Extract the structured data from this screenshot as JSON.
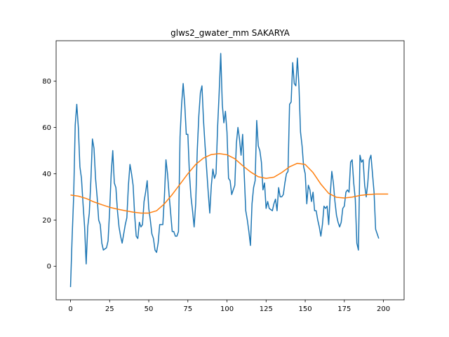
{
  "chart_data": {
    "type": "line",
    "title": "glws2_gwater_mm SAKARYA",
    "xlabel": "",
    "ylabel": "",
    "xlim": [
      -9.2,
      213.2
    ],
    "ylim": [
      -14.5,
      97.5
    ],
    "xticks": [
      0,
      25,
      50,
      75,
      100,
      125,
      150,
      175,
      200
    ],
    "yticks": [
      0,
      20,
      40,
      60,
      80
    ],
    "grid": false,
    "legend": "none",
    "series": [
      {
        "color": "#1f77b4",
        "points": [
          [
            0,
            -9
          ],
          [
            1,
            12
          ],
          [
            2,
            30
          ],
          [
            3,
            61
          ],
          [
            4,
            70
          ],
          [
            5,
            60
          ],
          [
            6,
            43
          ],
          [
            7,
            38
          ],
          [
            8,
            27
          ],
          [
            9,
            17
          ],
          [
            10,
            1
          ],
          [
            11,
            17
          ],
          [
            12,
            23
          ],
          [
            13,
            37
          ],
          [
            14,
            55
          ],
          [
            15,
            51
          ],
          [
            16,
            38
          ],
          [
            17,
            30
          ],
          [
            18,
            20
          ],
          [
            19,
            18
          ],
          [
            20,
            10
          ],
          [
            21,
            7
          ],
          [
            22,
            7.5
          ],
          [
            23,
            8
          ],
          [
            24,
            11
          ],
          [
            25,
            24
          ],
          [
            26,
            40
          ],
          [
            27,
            50
          ],
          [
            28,
            36
          ],
          [
            29,
            34
          ],
          [
            30,
            24
          ],
          [
            31,
            17
          ],
          [
            32,
            13
          ],
          [
            33,
            10
          ],
          [
            34,
            14
          ],
          [
            35,
            18
          ],
          [
            36,
            21
          ],
          [
            37,
            35
          ],
          [
            38,
            44
          ],
          [
            39,
            40
          ],
          [
            40,
            35
          ],
          [
            41,
            22
          ],
          [
            42,
            13
          ],
          [
            43,
            12
          ],
          [
            44,
            19
          ],
          [
            45,
            17
          ],
          [
            46,
            18
          ],
          [
            47,
            28
          ],
          [
            48,
            32
          ],
          [
            49,
            37
          ],
          [
            50,
            25
          ],
          [
            51,
            20
          ],
          [
            52,
            14
          ],
          [
            53,
            12
          ],
          [
            54,
            7
          ],
          [
            55,
            6
          ],
          [
            56,
            10
          ],
          [
            57,
            18
          ],
          [
            58,
            18
          ],
          [
            59,
            18
          ],
          [
            60,
            30
          ],
          [
            61,
            46
          ],
          [
            62,
            40
          ],
          [
            63,
            31
          ],
          [
            64,
            23
          ],
          [
            65,
            15
          ],
          [
            66,
            15
          ],
          [
            67,
            13
          ],
          [
            68,
            13
          ],
          [
            69,
            15
          ],
          [
            70,
            56
          ],
          [
            71,
            70
          ],
          [
            72,
            79
          ],
          [
            73,
            70
          ],
          [
            74,
            57
          ],
          [
            75,
            57
          ],
          [
            76,
            40
          ],
          [
            77,
            30
          ],
          [
            78,
            24
          ],
          [
            79,
            17
          ],
          [
            80,
            27
          ],
          [
            81,
            50
          ],
          [
            82,
            65
          ],
          [
            83,
            75
          ],
          [
            84,
            78
          ],
          [
            85,
            63
          ],
          [
            86,
            52
          ],
          [
            87,
            42
          ],
          [
            88,
            32
          ],
          [
            89,
            23
          ],
          [
            90,
            35
          ],
          [
            91,
            42
          ],
          [
            92,
            38
          ],
          [
            93,
            40
          ],
          [
            94,
            60
          ],
          [
            95,
            75
          ],
          [
            96,
            92
          ],
          [
            97,
            70
          ],
          [
            98,
            62
          ],
          [
            99,
            67
          ],
          [
            100,
            58
          ],
          [
            101,
            38
          ],
          [
            102,
            37
          ],
          [
            103,
            31
          ],
          [
            104,
            33
          ],
          [
            105,
            35
          ],
          [
            106,
            53
          ],
          [
            107,
            60
          ],
          [
            108,
            55
          ],
          [
            109,
            48
          ],
          [
            110,
            57
          ],
          [
            111,
            40
          ],
          [
            112,
            24
          ],
          [
            113,
            20
          ],
          [
            114,
            15
          ],
          [
            115,
            9
          ],
          [
            116,
            27
          ],
          [
            117,
            34
          ],
          [
            118,
            37
          ],
          [
            119,
            63
          ],
          [
            120,
            52
          ],
          [
            121,
            50
          ],
          [
            122,
            45
          ],
          [
            123,
            33
          ],
          [
            124,
            36
          ],
          [
            125,
            25
          ],
          [
            126,
            28
          ],
          [
            127,
            25
          ],
          [
            128,
            24.5
          ],
          [
            129,
            24
          ],
          [
            130,
            27
          ],
          [
            131,
            29
          ],
          [
            132,
            24
          ],
          [
            133,
            34
          ],
          [
            134,
            30
          ],
          [
            135,
            30
          ],
          [
            136,
            31
          ],
          [
            137,
            36
          ],
          [
            138,
            40
          ],
          [
            139,
            41
          ],
          [
            140,
            70
          ],
          [
            141,
            71
          ],
          [
            142,
            88
          ],
          [
            143,
            79
          ],
          [
            144,
            78
          ],
          [
            145,
            90
          ],
          [
            146,
            78
          ],
          [
            147,
            58
          ],
          [
            148,
            52
          ],
          [
            149,
            43
          ],
          [
            150,
            40
          ],
          [
            151,
            27
          ],
          [
            152,
            35
          ],
          [
            153,
            33
          ],
          [
            154,
            28
          ],
          [
            155,
            32
          ],
          [
            156,
            24
          ],
          [
            157,
            24
          ],
          [
            158,
            20
          ],
          [
            159,
            17
          ],
          [
            160,
            13
          ],
          [
            161,
            18
          ],
          [
            162,
            26
          ],
          [
            163,
            25
          ],
          [
            164,
            26
          ],
          [
            165,
            18
          ],
          [
            166,
            31
          ],
          [
            167,
            41
          ],
          [
            168,
            36
          ],
          [
            169,
            28
          ],
          [
            170,
            22
          ],
          [
            171,
            19
          ],
          [
            172,
            17
          ],
          [
            173,
            19
          ],
          [
            174,
            25
          ],
          [
            175,
            26
          ],
          [
            176,
            32
          ],
          [
            177,
            33
          ],
          [
            178,
            32
          ],
          [
            179,
            45
          ],
          [
            180,
            46
          ],
          [
            181,
            36
          ],
          [
            182,
            29
          ],
          [
            183,
            10
          ],
          [
            184,
            7
          ],
          [
            185,
            48
          ],
          [
            186,
            45
          ],
          [
            187,
            46
          ],
          [
            188,
            35
          ],
          [
            189,
            30
          ],
          [
            190,
            36
          ],
          [
            191,
            46
          ],
          [
            192,
            48
          ],
          [
            193,
            40
          ],
          [
            194,
            32
          ],
          [
            195,
            16
          ],
          [
            196,
            14
          ],
          [
            197,
            12
          ]
        ]
      },
      {
        "color": "#ff7f0e",
        "points": [
          [
            0,
            30.8
          ],
          [
            5,
            30.3
          ],
          [
            10,
            29.3
          ],
          [
            15,
            27.8
          ],
          [
            20,
            26.6
          ],
          [
            25,
            25.5
          ],
          [
            30,
            24.7
          ],
          [
            35,
            24.0
          ],
          [
            40,
            23.4
          ],
          [
            45,
            23.0
          ],
          [
            50,
            23.0
          ],
          [
            55,
            24.0
          ],
          [
            60,
            27.0
          ],
          [
            65,
            31.0
          ],
          [
            70,
            35.5
          ],
          [
            75,
            40.0
          ],
          [
            80,
            44.0
          ],
          [
            85,
            46.8
          ],
          [
            90,
            48.3
          ],
          [
            95,
            48.7
          ],
          [
            100,
            48.2
          ],
          [
            105,
            46.5
          ],
          [
            110,
            43.5
          ],
          [
            115,
            40.8
          ],
          [
            120,
            38.7
          ],
          [
            125,
            38.0
          ],
          [
            130,
            38.5
          ],
          [
            135,
            40.5
          ],
          [
            140,
            43.0
          ],
          [
            145,
            44.5
          ],
          [
            150,
            44.0
          ],
          [
            155,
            40.5
          ],
          [
            160,
            35.5
          ],
          [
            165,
            31.5
          ],
          [
            170,
            29.8
          ],
          [
            175,
            29.5
          ],
          [
            180,
            29.9
          ],
          [
            185,
            30.6
          ],
          [
            190,
            31.0
          ],
          [
            195,
            31.2
          ],
          [
            203,
            31.2
          ]
        ]
      }
    ]
  }
}
